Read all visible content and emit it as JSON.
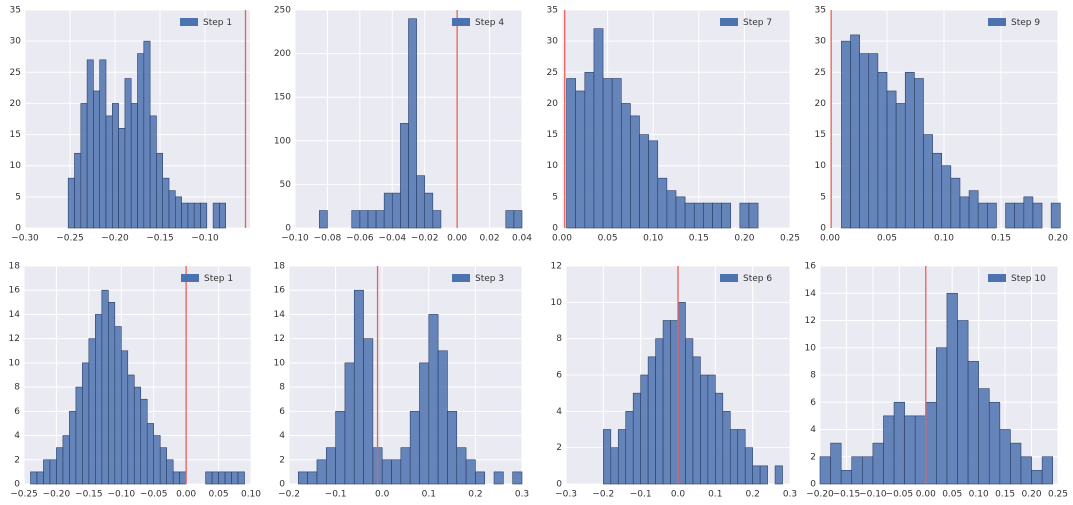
{
  "chart_data": [
    {
      "type": "histogram",
      "label": "Step 1",
      "color": "#4c72b0",
      "vline": -0.055,
      "vline_color": "#e8605a",
      "bins": [
        -0.252,
        -0.245,
        -0.238,
        -0.231,
        -0.224,
        -0.217,
        -0.21,
        -0.203,
        -0.196,
        -0.189,
        -0.182,
        -0.175,
        -0.168,
        -0.161,
        -0.154,
        -0.147,
        -0.14,
        -0.133,
        -0.126,
        -0.119,
        -0.112,
        -0.105,
        -0.098,
        -0.091,
        -0.084,
        -0.077
      ],
      "counts": [
        8,
        12,
        20,
        27,
        22,
        27,
        18,
        20,
        16,
        24,
        20,
        28,
        30,
        18,
        12,
        8,
        6,
        5,
        4,
        4,
        4,
        4,
        0,
        4,
        4
      ],
      "xlim": [
        -0.3,
        -0.05
      ],
      "xticks": [
        {
          "value": -0.3,
          "label": "−0.30"
        },
        {
          "value": -0.25,
          "label": "−0.25"
        },
        {
          "value": -0.2,
          "label": "−0.20"
        },
        {
          "value": -0.15,
          "label": "−0.15"
        },
        {
          "value": -0.1,
          "label": "−0.10"
        }
      ],
      "ylim": [
        0,
        35
      ],
      "yticks": [
        0,
        5,
        10,
        15,
        20,
        25,
        30,
        35
      ],
      "grid": true
    },
    {
      "type": "histogram",
      "label": "Step 4",
      "color": "#4c72b0",
      "vline": 0.0,
      "vline_color": "#e8605a",
      "bins": [
        -0.09,
        -0.085,
        -0.08,
        -0.075,
        -0.07,
        -0.065,
        -0.06,
        -0.055,
        -0.05,
        -0.045,
        -0.04,
        -0.035,
        -0.03,
        -0.025,
        -0.02,
        -0.015,
        -0.01,
        -0.005,
        0,
        0.005,
        0.01,
        0.015,
        0.02,
        0.025,
        0.03,
        0.035,
        0.04
      ],
      "counts": [
        0,
        20,
        0,
        0,
        0,
        20,
        20,
        20,
        20,
        40,
        40,
        120,
        240,
        60,
        40,
        20,
        0,
        0,
        0,
        0,
        0,
        0,
        0,
        0,
        20,
        20
      ],
      "xlim": [
        -0.1,
        0.04
      ],
      "xticks": [
        {
          "value": -0.1,
          "label": "−0.10"
        },
        {
          "value": -0.08,
          "label": "−0.08"
        },
        {
          "value": -0.06,
          "label": "−0.06"
        },
        {
          "value": -0.04,
          "label": "−0.04"
        },
        {
          "value": -0.02,
          "label": "−0.02"
        },
        {
          "value": 0,
          "label": "0.00"
        },
        {
          "value": 0.02,
          "label": "0.02"
        },
        {
          "value": 0.04,
          "label": "0.04"
        }
      ],
      "ylim": [
        0,
        250
      ],
      "yticks": [
        0,
        50,
        100,
        150,
        200,
        250
      ],
      "grid": true
    },
    {
      "type": "histogram",
      "label": "Step 7",
      "color": "#4c72b0",
      "vline": 0.003,
      "vline_color": "#e8605a",
      "bins": [
        0.005,
        0.015,
        0.025,
        0.035,
        0.045,
        0.055,
        0.065,
        0.075,
        0.085,
        0.095,
        0.105,
        0.115,
        0.125,
        0.135,
        0.145,
        0.155,
        0.165,
        0.175,
        0.185,
        0.195,
        0.205,
        0.215
      ],
      "counts": [
        24,
        22,
        25,
        32,
        24,
        24,
        20,
        18,
        15,
        14,
        8,
        6,
        5,
        4,
        4,
        4,
        4,
        4,
        0,
        4,
        4
      ],
      "xlim": [
        0,
        0.25
      ],
      "xticks": [
        {
          "value": 0,
          "label": "0.00"
        },
        {
          "value": 0.05,
          "label": "0.05"
        },
        {
          "value": 0.1,
          "label": "0.10"
        },
        {
          "value": 0.15,
          "label": "0.15"
        },
        {
          "value": 0.2,
          "label": "0.20"
        },
        {
          "value": 0.25,
          "label": "0.25"
        }
      ],
      "ylim": [
        0,
        35
      ],
      "yticks": [
        0,
        5,
        10,
        15,
        20,
        25,
        30,
        35
      ],
      "grid": true
    },
    {
      "type": "histogram",
      "label": "Step 9",
      "color": "#4c72b0",
      "vline": 0.001,
      "vline_color": "#e8605a",
      "bins": [
        0.01,
        0.018,
        0.026,
        0.034,
        0.042,
        0.05,
        0.058,
        0.066,
        0.074,
        0.082,
        0.09,
        0.098,
        0.106,
        0.114,
        0.122,
        0.13,
        0.138,
        0.146,
        0.154,
        0.162,
        0.17,
        0.178,
        0.186,
        0.194,
        0.202
      ],
      "counts": [
        30,
        31,
        28,
        28,
        25,
        22,
        20,
        25,
        24,
        15,
        12,
        10,
        8,
        5,
        6,
        4,
        4,
        0,
        4,
        4,
        5,
        4,
        0,
        4
      ],
      "xlim": [
        0,
        0.2
      ],
      "xticks": [
        {
          "value": 0,
          "label": "0.00"
        },
        {
          "value": 0.05,
          "label": "0.05"
        },
        {
          "value": 0.1,
          "label": "0.10"
        },
        {
          "value": 0.15,
          "label": "0.15"
        },
        {
          "value": 0.2,
          "label": "0.20"
        }
      ],
      "ylim": [
        0,
        35
      ],
      "yticks": [
        0,
        5,
        10,
        15,
        20,
        25,
        30,
        35
      ],
      "grid": true
    },
    {
      "type": "histogram",
      "label": "Step 1",
      "color": "#4c72b0",
      "vline": 0.0,
      "vline_color": "#e8605a",
      "bins": [
        -0.24,
        -0.23,
        -0.22,
        -0.21,
        -0.2,
        -0.19,
        -0.18,
        -0.17,
        -0.16,
        -0.15,
        -0.14,
        -0.13,
        -0.12,
        -0.11,
        -0.1,
        -0.09,
        -0.08,
        -0.07,
        -0.06,
        -0.05,
        -0.04,
        -0.03,
        -0.02,
        -0.01,
        0,
        0.01,
        0.02,
        0.03,
        0.04,
        0.05,
        0.06,
        0.07,
        0.08,
        0.09
      ],
      "counts": [
        1,
        1,
        2,
        2,
        3,
        4,
        6,
        8,
        10,
        12,
        14,
        16,
        15,
        13,
        11,
        9,
        8,
        7,
        5,
        4,
        3,
        2,
        1,
        1,
        0,
        0,
        0,
        1,
        1,
        1,
        1,
        1,
        1
      ],
      "xlim": [
        -0.25,
        0.1
      ],
      "xticks": [
        {
          "value": -0.25,
          "label": "−0.25"
        },
        {
          "value": -0.2,
          "label": "−0.20"
        },
        {
          "value": -0.15,
          "label": "−0.15"
        },
        {
          "value": -0.1,
          "label": "−0.10"
        },
        {
          "value": -0.05,
          "label": "−0.05"
        },
        {
          "value": 0,
          "label": "0.00"
        },
        {
          "value": 0.05,
          "label": "0.05"
        },
        {
          "value": 0.1,
          "label": "0.10"
        }
      ],
      "ylim": [
        0,
        18
      ],
      "yticks": [
        0,
        2,
        4,
        6,
        8,
        10,
        12,
        14,
        16,
        18
      ],
      "grid": true
    },
    {
      "type": "histogram",
      "label": "Step 3",
      "color": "#4c72b0",
      "vline": -0.01,
      "vline_color": "#e8605a",
      "bins": [
        -0.18,
        -0.16,
        -0.14,
        -0.12,
        -0.1,
        -0.08,
        -0.06,
        -0.04,
        -0.02,
        0,
        0.02,
        0.04,
        0.06,
        0.08,
        0.1,
        0.12,
        0.14,
        0.16,
        0.18,
        0.2,
        0.22,
        0.24,
        0.26,
        0.28,
        0.3
      ],
      "counts": [
        1,
        1,
        2,
        3,
        6,
        10,
        16,
        12,
        3,
        2,
        2,
        3,
        6,
        10,
        14,
        11,
        6,
        3,
        2,
        1,
        0,
        1,
        0,
        1
      ],
      "xlim": [
        -0.2,
        0.3
      ],
      "xticks": [
        {
          "value": -0.2,
          "label": "−0.2"
        },
        {
          "value": -0.1,
          "label": "−0.1"
        },
        {
          "value": 0,
          "label": "0.0"
        },
        {
          "value": 0.1,
          "label": "0.1"
        },
        {
          "value": 0.2,
          "label": "0.2"
        },
        {
          "value": 0.3,
          "label": "0.3"
        }
      ],
      "ylim": [
        0,
        18
      ],
      "yticks": [
        0,
        2,
        4,
        6,
        8,
        10,
        12,
        14,
        16,
        18
      ],
      "grid": true
    },
    {
      "type": "histogram",
      "label": "Step 6",
      "color": "#4c72b0",
      "vline": 0.0,
      "vline_color": "#e8605a",
      "bins": [
        -0.22,
        -0.2,
        -0.18,
        -0.16,
        -0.14,
        -0.12,
        -0.1,
        -0.08,
        -0.06,
        -0.04,
        -0.02,
        0,
        0.02,
        0.04,
        0.06,
        0.08,
        0.1,
        0.12,
        0.14,
        0.16,
        0.18,
        0.2,
        0.22,
        0.24,
        0.26,
        0.28
      ],
      "counts": [
        0,
        3,
        2,
        3,
        4,
        5,
        6,
        7,
        8,
        9,
        9,
        10,
        8,
        7,
        6,
        6,
        5,
        4,
        3,
        3,
        2,
        1,
        1,
        0,
        1
      ],
      "xlim": [
        -0.3,
        0.3
      ],
      "xticks": [
        {
          "value": -0.3,
          "label": "−0.3"
        },
        {
          "value": -0.2,
          "label": "−0.2"
        },
        {
          "value": -0.1,
          "label": "−0.1"
        },
        {
          "value": 0,
          "label": "0.0"
        },
        {
          "value": 0.1,
          "label": "0.1"
        },
        {
          "value": 0.2,
          "label": "0.2"
        },
        {
          "value": 0.3,
          "label": "0.3"
        }
      ],
      "ylim": [
        0,
        12
      ],
      "yticks": [
        0,
        2,
        4,
        6,
        8,
        10,
        12
      ],
      "grid": true
    },
    {
      "type": "histogram",
      "label": "Step 10",
      "color": "#4c72b0",
      "vline": 0.0,
      "vline_color": "#e8605a",
      "bins": [
        -0.2,
        -0.18,
        -0.16,
        -0.14,
        -0.12,
        -0.1,
        -0.08,
        -0.06,
        -0.04,
        -0.02,
        0,
        0.02,
        0.04,
        0.06,
        0.08,
        0.1,
        0.12,
        0.14,
        0.16,
        0.18,
        0.2,
        0.22,
        0.24
      ],
      "counts": [
        2,
        3,
        1,
        2,
        2,
        3,
        5,
        6,
        5,
        5,
        6,
        10,
        14,
        12,
        9,
        7,
        6,
        4,
        3,
        2,
        1,
        2
      ],
      "xlim": [
        -0.2,
        0.25
      ],
      "xticks": [
        {
          "value": -0.2,
          "label": "−0.20"
        },
        {
          "value": -0.15,
          "label": "−0.15"
        },
        {
          "value": -0.1,
          "label": "−0.10"
        },
        {
          "value": -0.05,
          "label": "−0.05"
        },
        {
          "value": 0,
          "label": "0.00"
        },
        {
          "value": 0.05,
          "label": "0.05"
        },
        {
          "value": 0.1,
          "label": "0.10"
        },
        {
          "value": 0.15,
          "label": "0.15"
        },
        {
          "value": 0.2,
          "label": "0.20"
        },
        {
          "value": 0.25,
          "label": "0.25"
        }
      ],
      "ylim": [
        0,
        16
      ],
      "yticks": [
        0,
        2,
        4,
        6,
        8,
        10,
        12,
        14,
        16
      ],
      "grid": true
    }
  ]
}
